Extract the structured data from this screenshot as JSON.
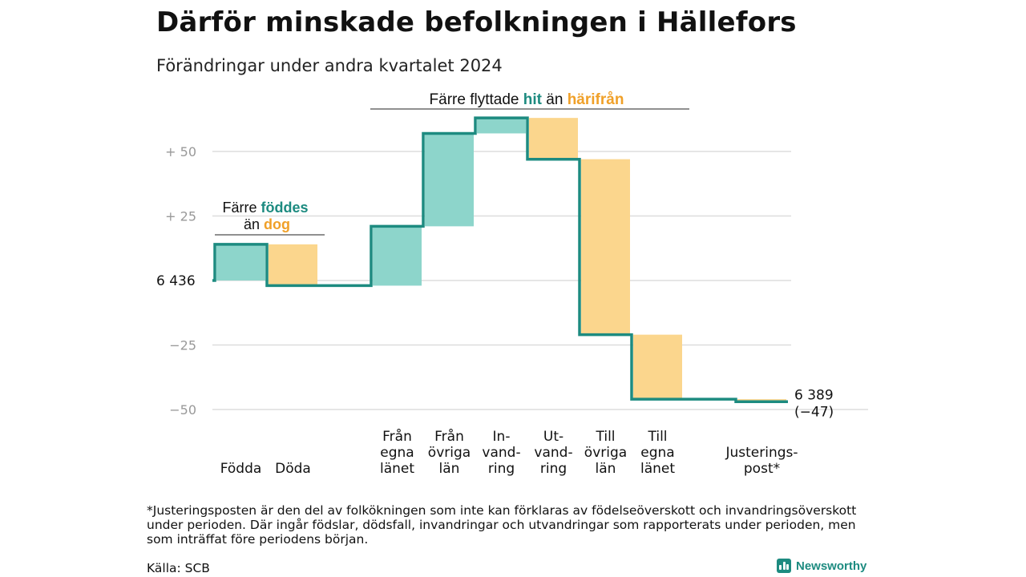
{
  "header": {
    "title": "Därför minskade befolkningen i Hällefors",
    "subtitle": "Förändringar under andra kvartalet 2024"
  },
  "chart_data": {
    "type": "waterfall",
    "baseline_value": 6436,
    "baseline_label": "6 436",
    "end_value": 6389,
    "end_label_line1": "6 389",
    "end_label_line2": "(−47)",
    "y_ticks": [
      {
        "value": 50,
        "label": "+  50"
      },
      {
        "value": 25,
        "label": "+  25"
      },
      {
        "value": -25,
        "label": "−25"
      },
      {
        "value": -50,
        "label": "−50"
      }
    ],
    "ylim": [
      -50,
      60
    ],
    "steps": [
      {
        "label": [
          "Födda"
        ],
        "delta": 14,
        "group": "in"
      },
      {
        "label": [
          "Döda"
        ],
        "delta": -16,
        "group": "out"
      },
      {
        "label": [],
        "delta": 0,
        "group": "gap"
      },
      {
        "label": [
          "Från",
          "egna",
          "länet"
        ],
        "delta": 23,
        "group": "in"
      },
      {
        "label": [
          "Från",
          "övriga",
          "län"
        ],
        "delta": 36,
        "group": "in"
      },
      {
        "label": [
          "In-",
          "vand-",
          "ring"
        ],
        "delta": 6,
        "group": "in"
      },
      {
        "label": [
          "Ut-",
          "vand-",
          "ring"
        ],
        "delta": -16,
        "group": "out"
      },
      {
        "label": [
          "Till",
          "övriga",
          "län"
        ],
        "delta": -68,
        "group": "out"
      },
      {
        "label": [
          "Till",
          "egna",
          "länet"
        ],
        "delta": -25,
        "group": "out"
      },
      {
        "label": [],
        "delta": 0,
        "group": "gap"
      },
      {
        "label": [
          "Justerings-",
          "post*"
        ],
        "delta": -1,
        "group": "adj"
      }
    ],
    "annotations": {
      "births": {
        "line1": "Färre",
        "hl1": "föddes",
        "line2": "än",
        "hl2": "dog"
      },
      "moves": {
        "text": "Färre flyttade",
        "hl1": "hit",
        "mid": "än",
        "hl2": "härifrån"
      }
    },
    "colors": {
      "in": "#8dd5cb",
      "out": "#fbd68d",
      "line": "#1d8b80",
      "teal_text": "#1d8b80",
      "orange_text": "#f0a028",
      "grid": "#dddddd",
      "tick_text": "#999999"
    }
  },
  "footer": {
    "footnote": "*Justeringsposten är den del av folkökningen som inte kan förklaras av födelseöverskott och invandringsöverskott under perioden. Där ingår födslar, dödsfall, invandringar och utvandringar som rapporterats under perioden, men som inträffat före periodens början.",
    "source": "Källa: SCB",
    "brand": "Newsworthy",
    "brand_icon": "bar-chart-icon"
  }
}
